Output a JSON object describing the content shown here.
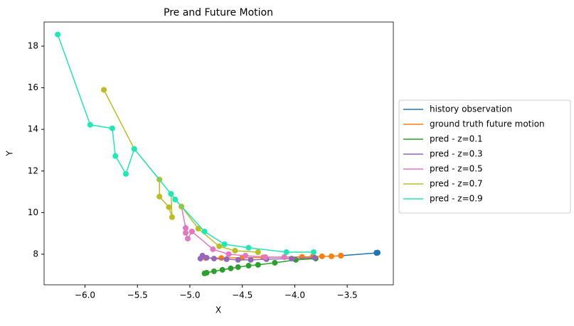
{
  "chart_data": {
    "type": "line",
    "title": "Pre and Future Motion",
    "xlabel": "X",
    "ylabel": "Y",
    "xlim": [
      -6.39,
      -3.06
    ],
    "ylim": [
      6.53,
      19.16
    ],
    "xticks": [
      {
        "value": -6.0,
        "label": "−6.0"
      },
      {
        "value": -5.5,
        "label": "−5.5"
      },
      {
        "value": -5.0,
        "label": "−5.0"
      },
      {
        "value": -4.5,
        "label": "−4.5"
      },
      {
        "value": -4.0,
        "label": "−4.0"
      },
      {
        "value": -3.5,
        "label": "−3.5"
      }
    ],
    "yticks": [
      8,
      10,
      12,
      14,
      16,
      18
    ],
    "legend": "outside right",
    "series": [
      {
        "name": "history observation",
        "color": "#1f77b4",
        "x": [
          -3.22,
          -3.22,
          -3.21,
          -3.21,
          -3.22,
          -3.22,
          -3.56
        ],
        "values": [
          8.07,
          8.06,
          8.07,
          8.08,
          8.07,
          8.06,
          7.93
        ]
      },
      {
        "name": "ground truth future motion",
        "color": "#ff7f0e",
        "x": [
          -3.56,
          -3.65,
          -3.74,
          -3.83,
          -3.93,
          -4.1,
          -4.3,
          -4.5,
          -4.7,
          -4.85
        ],
        "values": [
          7.93,
          7.9,
          7.9,
          7.88,
          7.87,
          7.86,
          7.85,
          7.83,
          7.82,
          7.82
        ]
      },
      {
        "name": "pred - z=0.1",
        "color": "#2ca02c",
        "x": [
          -3.8,
          -3.99,
          -4.19,
          -4.35,
          -4.44,
          -4.54,
          -4.61,
          -4.69,
          -4.77,
          -4.84,
          -4.86
        ],
        "values": [
          7.79,
          7.73,
          7.59,
          7.49,
          7.45,
          7.38,
          7.32,
          7.25,
          7.18,
          7.11,
          7.08
        ]
      },
      {
        "name": "pred - z=0.3",
        "color": "#9467bd",
        "x": [
          -3.81,
          -4.03,
          -4.27,
          -4.42,
          -4.54,
          -4.65,
          -4.77,
          -4.84,
          -4.88,
          -4.9
        ],
        "values": [
          7.83,
          7.79,
          7.76,
          7.73,
          7.73,
          7.76,
          7.79,
          7.83,
          7.93,
          7.79
        ]
      },
      {
        "name": "pred - z=0.5",
        "color": "#e377c2",
        "x": [
          -4.1,
          -4.28,
          -4.47,
          -4.63,
          -4.78,
          -4.98,
          -5.02,
          -5.04,
          -5.04,
          -5.08
        ],
        "values": [
          7.86,
          7.86,
          7.93,
          8.0,
          8.24,
          9.09,
          8.75,
          9.03,
          9.26,
          10.29
        ]
      },
      {
        "name": "pred - z=0.7",
        "color": "#bcbd22",
        "x": [
          -4.35,
          -4.57,
          -4.72,
          -4.92,
          -5.08,
          -5.18,
          -5.17,
          -5.2,
          -5.29,
          -5.29,
          -5.53,
          -5.82
        ],
        "values": [
          8.1,
          8.17,
          8.38,
          9.23,
          10.29,
          10.9,
          9.78,
          10.26,
          10.77,
          11.59,
          13.06,
          15.9
        ]
      },
      {
        "name": "pred - z=0.9",
        "color": "#1de9b6",
        "x": [
          -3.82,
          -4.08,
          -4.44,
          -4.67,
          -4.86,
          -5.14,
          -5.18,
          -5.53,
          -5.61,
          -5.71,
          -5.74,
          -5.95,
          -6.26
        ],
        "values": [
          8.1,
          8.1,
          8.31,
          8.48,
          9.09,
          10.63,
          10.9,
          13.06,
          11.86,
          12.72,
          14.05,
          14.22,
          18.56
        ]
      }
    ]
  }
}
